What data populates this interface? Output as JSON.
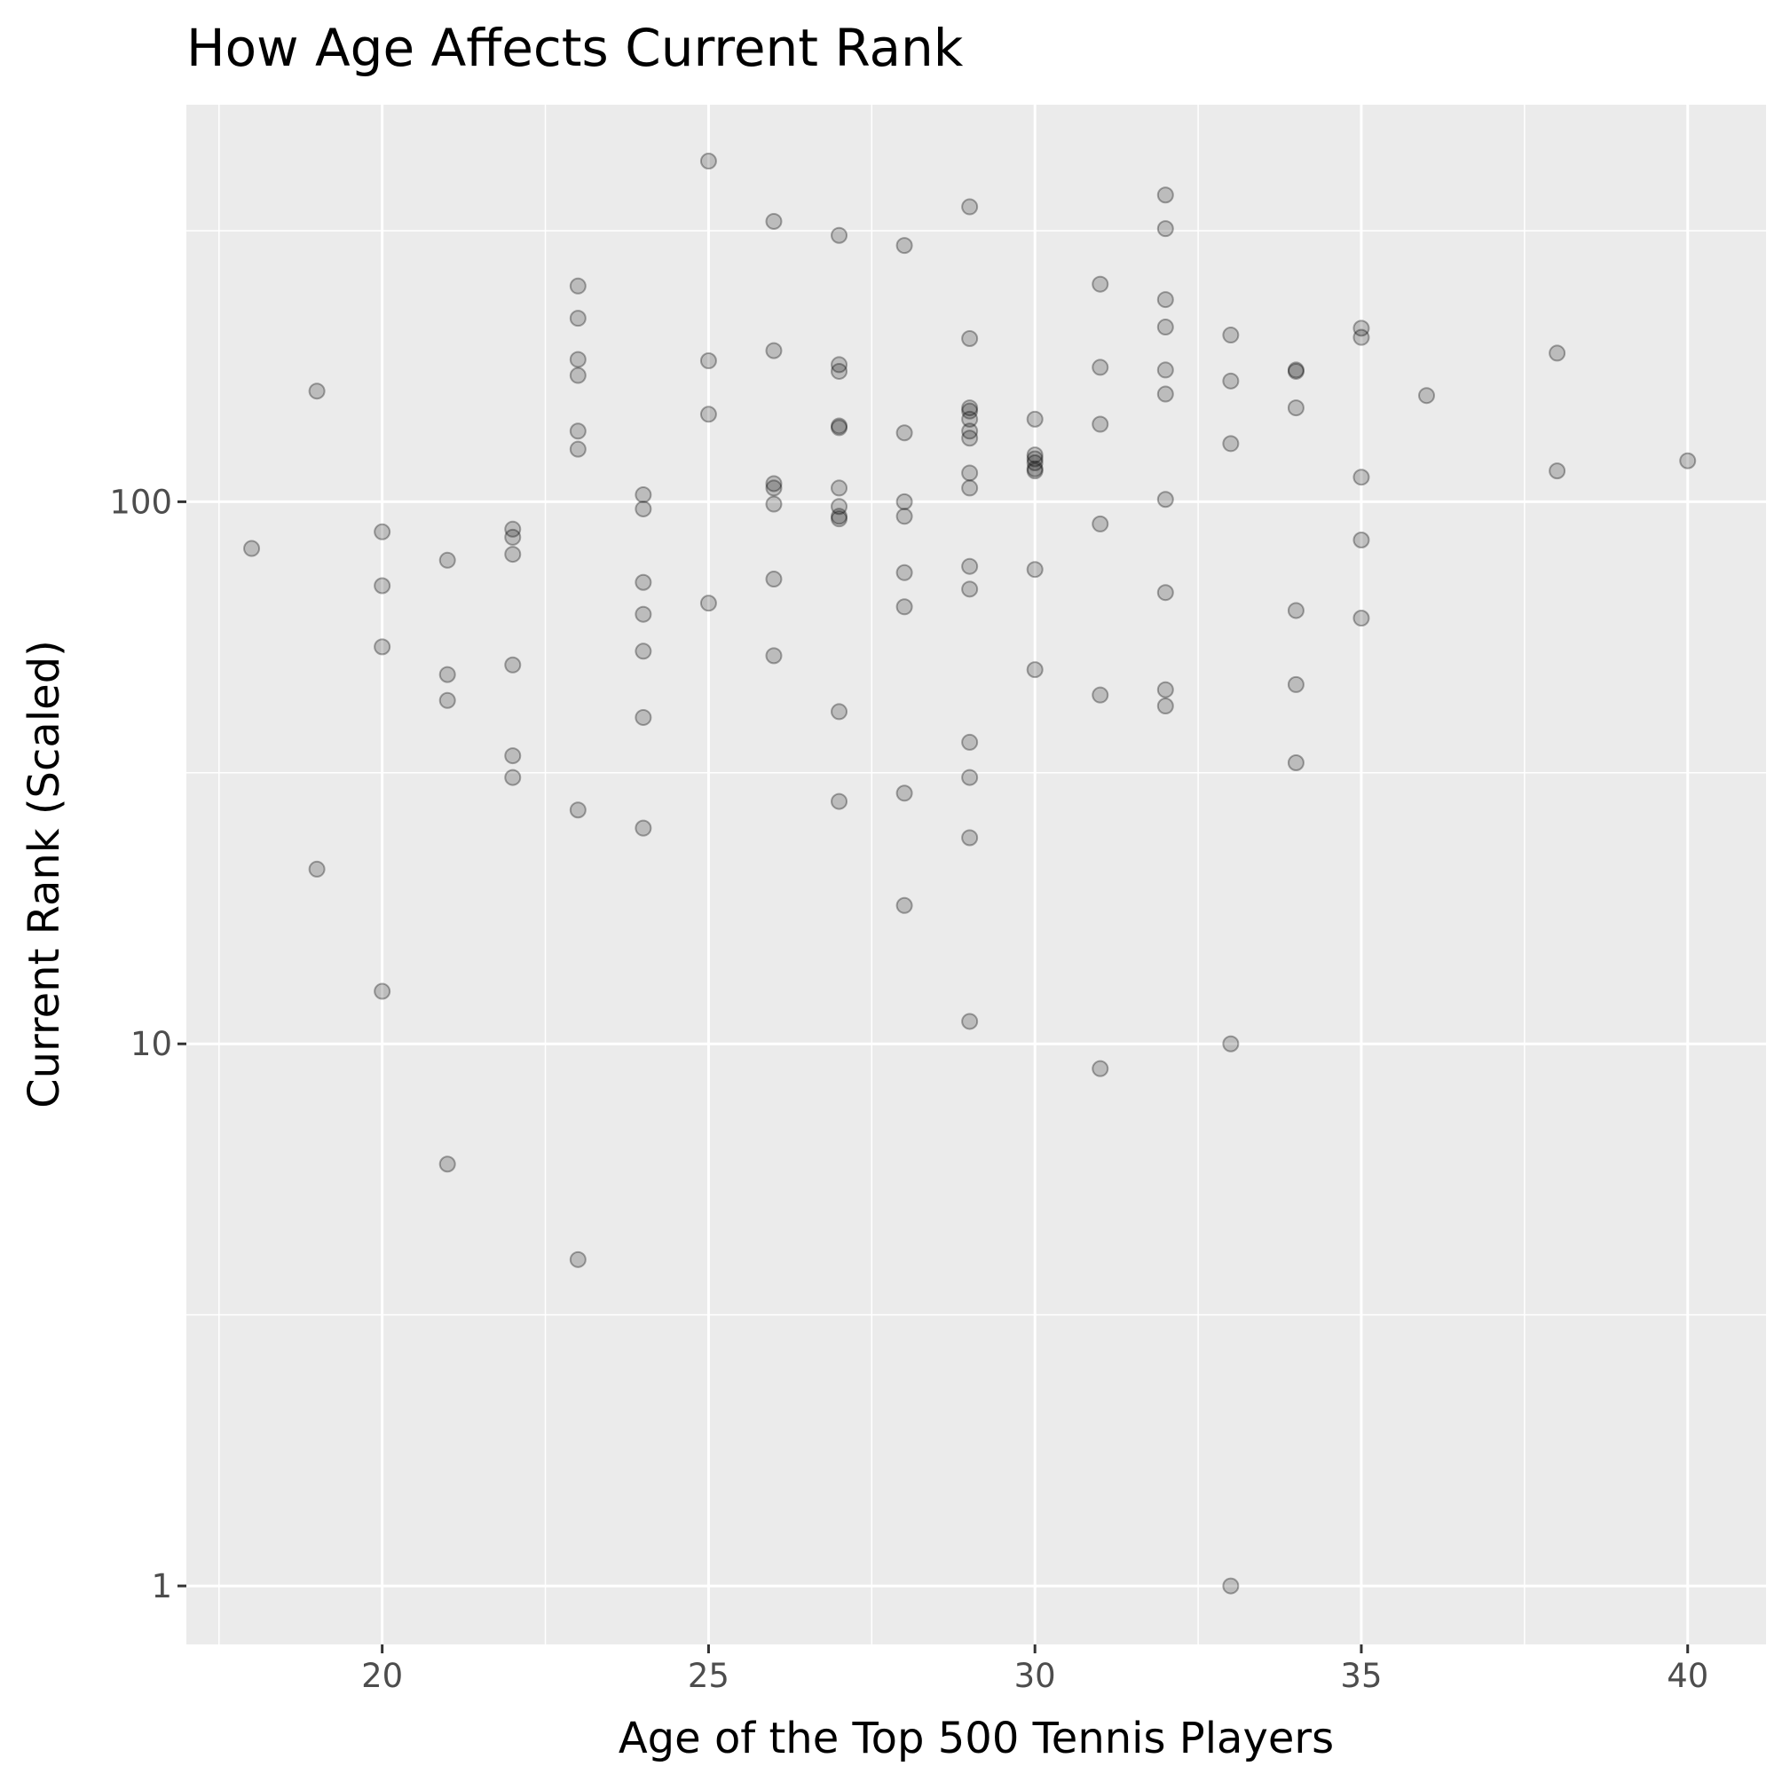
{
  "chart_data": {
    "type": "scatter",
    "title": "How Age Affects Current Rank",
    "xlabel": "Age of the Top 500 Tennis Players",
    "ylabel": "Current Rank (Scaled)",
    "x_scale": "linear",
    "y_scale": "log10",
    "xlim": [
      17,
      41.2
    ],
    "ylim": [
      0.78,
      540
    ],
    "x_ticks": [
      20,
      25,
      30,
      35,
      40
    ],
    "x_tick_labels": [
      "20",
      "25",
      "30",
      "35",
      "40"
    ],
    "y_ticks": [
      1,
      10,
      100
    ],
    "y_tick_labels": [
      "1",
      "10",
      "100"
    ],
    "grid": true,
    "legend": "none",
    "point_color": "#000000",
    "point_alpha": 0.2,
    "points": [
      [
        18,
        82
      ],
      [
        19,
        160
      ],
      [
        19,
        21
      ],
      [
        20,
        88
      ],
      [
        20,
        70
      ],
      [
        20,
        54
      ],
      [
        20,
        12.5
      ],
      [
        21,
        78
      ],
      [
        21,
        48
      ],
      [
        21,
        43
      ],
      [
        21,
        6
      ],
      [
        22,
        89
      ],
      [
        22,
        86
      ],
      [
        22,
        80
      ],
      [
        22,
        50
      ],
      [
        22,
        34
      ],
      [
        22,
        31
      ],
      [
        23,
        250
      ],
      [
        23,
        218
      ],
      [
        23,
        183
      ],
      [
        23,
        171
      ],
      [
        23,
        135
      ],
      [
        23,
        125
      ],
      [
        23,
        27
      ],
      [
        23,
        4
      ],
      [
        24,
        103
      ],
      [
        24,
        97
      ],
      [
        24,
        71
      ],
      [
        24,
        62
      ],
      [
        24,
        53
      ],
      [
        24,
        40
      ],
      [
        24,
        25
      ],
      [
        25,
        425
      ],
      [
        25,
        182
      ],
      [
        25,
        145
      ],
      [
        25,
        65
      ],
      [
        26,
        329
      ],
      [
        26,
        190
      ],
      [
        26,
        108
      ],
      [
        26,
        106
      ],
      [
        26,
        99
      ],
      [
        26,
        72
      ],
      [
        26,
        52
      ],
      [
        27,
        310
      ],
      [
        27,
        179
      ],
      [
        27,
        174
      ],
      [
        27,
        138
      ],
      [
        27,
        137
      ],
      [
        27,
        106
      ],
      [
        27,
        98
      ],
      [
        27,
        94
      ],
      [
        27,
        93
      ],
      [
        27,
        41
      ],
      [
        27,
        28
      ],
      [
        28,
        297
      ],
      [
        28,
        134
      ],
      [
        28,
        100
      ],
      [
        28,
        94
      ],
      [
        28,
        74
      ],
      [
        28,
        64
      ],
      [
        28,
        29
      ],
      [
        28,
        18
      ],
      [
        29,
        350
      ],
      [
        29,
        200
      ],
      [
        29,
        149
      ],
      [
        29,
        147
      ],
      [
        29,
        142
      ],
      [
        29,
        135
      ],
      [
        29,
        131
      ],
      [
        29,
        113
      ],
      [
        29,
        106
      ],
      [
        29,
        76
      ],
      [
        29,
        69
      ],
      [
        29,
        36
      ],
      [
        29,
        31
      ],
      [
        29,
        24
      ],
      [
        29,
        11
      ],
      [
        30,
        142
      ],
      [
        30,
        122
      ],
      [
        30,
        120
      ],
      [
        30,
        118
      ],
      [
        30,
        115
      ],
      [
        30,
        114
      ],
      [
        30,
        75
      ],
      [
        30,
        49
      ],
      [
        31,
        252
      ],
      [
        31,
        177
      ],
      [
        31,
        139
      ],
      [
        31,
        91
      ],
      [
        31,
        44
      ],
      [
        31,
        9
      ],
      [
        32,
        368
      ],
      [
        32,
        319
      ],
      [
        32,
        236
      ],
      [
        32,
        210
      ],
      [
        32,
        175
      ],
      [
        32,
        158
      ],
      [
        32,
        101
      ],
      [
        32,
        68
      ],
      [
        32,
        45
      ],
      [
        32,
        42
      ],
      [
        33,
        203
      ],
      [
        33,
        167
      ],
      [
        33,
        128
      ],
      [
        33,
        10
      ],
      [
        33,
        1
      ],
      [
        34,
        175
      ],
      [
        34,
        174
      ],
      [
        34,
        149
      ],
      [
        34,
        63
      ],
      [
        34,
        46
      ],
      [
        34,
        33
      ],
      [
        35,
        209
      ],
      [
        35,
        201
      ],
      [
        35,
        111
      ],
      [
        35,
        85
      ],
      [
        35,
        61
      ],
      [
        36,
        157
      ],
      [
        38,
        188
      ],
      [
        38,
        114
      ],
      [
        40,
        119
      ]
    ]
  }
}
